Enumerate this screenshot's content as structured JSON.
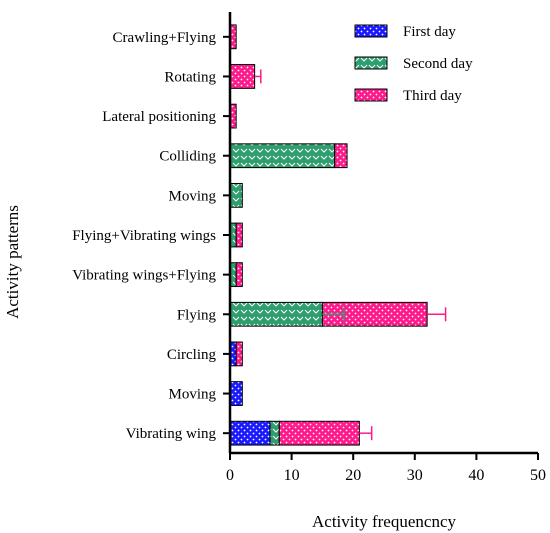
{
  "chart_data": {
    "type": "bar",
    "orientation": "horizontal",
    "stacked": true,
    "title": "",
    "xlabel": "Activity frequencncy",
    "ylabel": "Activity patterns",
    "xlim": [
      0,
      50
    ],
    "xticks": [
      0,
      10,
      20,
      30,
      40,
      50
    ],
    "grid": false,
    "legend_position": "top-right",
    "categories": [
      "Crawling+Flying",
      "Rotating",
      "Lateral positioning",
      "Colliding",
      "Moving",
      "Flying+Vibrating wings",
      "Vibrating wings+Flying",
      "Flying",
      "Circling",
      "Moving",
      "Vibrating wing"
    ],
    "series": [
      {
        "name": "First day",
        "color": "#1a1aff",
        "pattern": "dots",
        "values": [
          0,
          0,
          0,
          0,
          0,
          0,
          0,
          0,
          1,
          2,
          6.5
        ],
        "errors": [
          0,
          0,
          0,
          0,
          0,
          0,
          0,
          0,
          0,
          0,
          0
        ]
      },
      {
        "name": "Second day",
        "color": "#2e9e6e",
        "pattern": "chevrons",
        "values": [
          0,
          0,
          0,
          17,
          2,
          1,
          1,
          15,
          0,
          0,
          1.5
        ],
        "errors": [
          0,
          0,
          0,
          0,
          0,
          0,
          0,
          3.5,
          0,
          0,
          0
        ]
      },
      {
        "name": "Third day",
        "color": "#ff1a8c",
        "pattern": "dots",
        "values": [
          1,
          4,
          1,
          2,
          0,
          1,
          1,
          17,
          1,
          0,
          13
        ],
        "errors": [
          0,
          1,
          0,
          0,
          0,
          0,
          0,
          3,
          0,
          0,
          2
        ]
      }
    ]
  }
}
